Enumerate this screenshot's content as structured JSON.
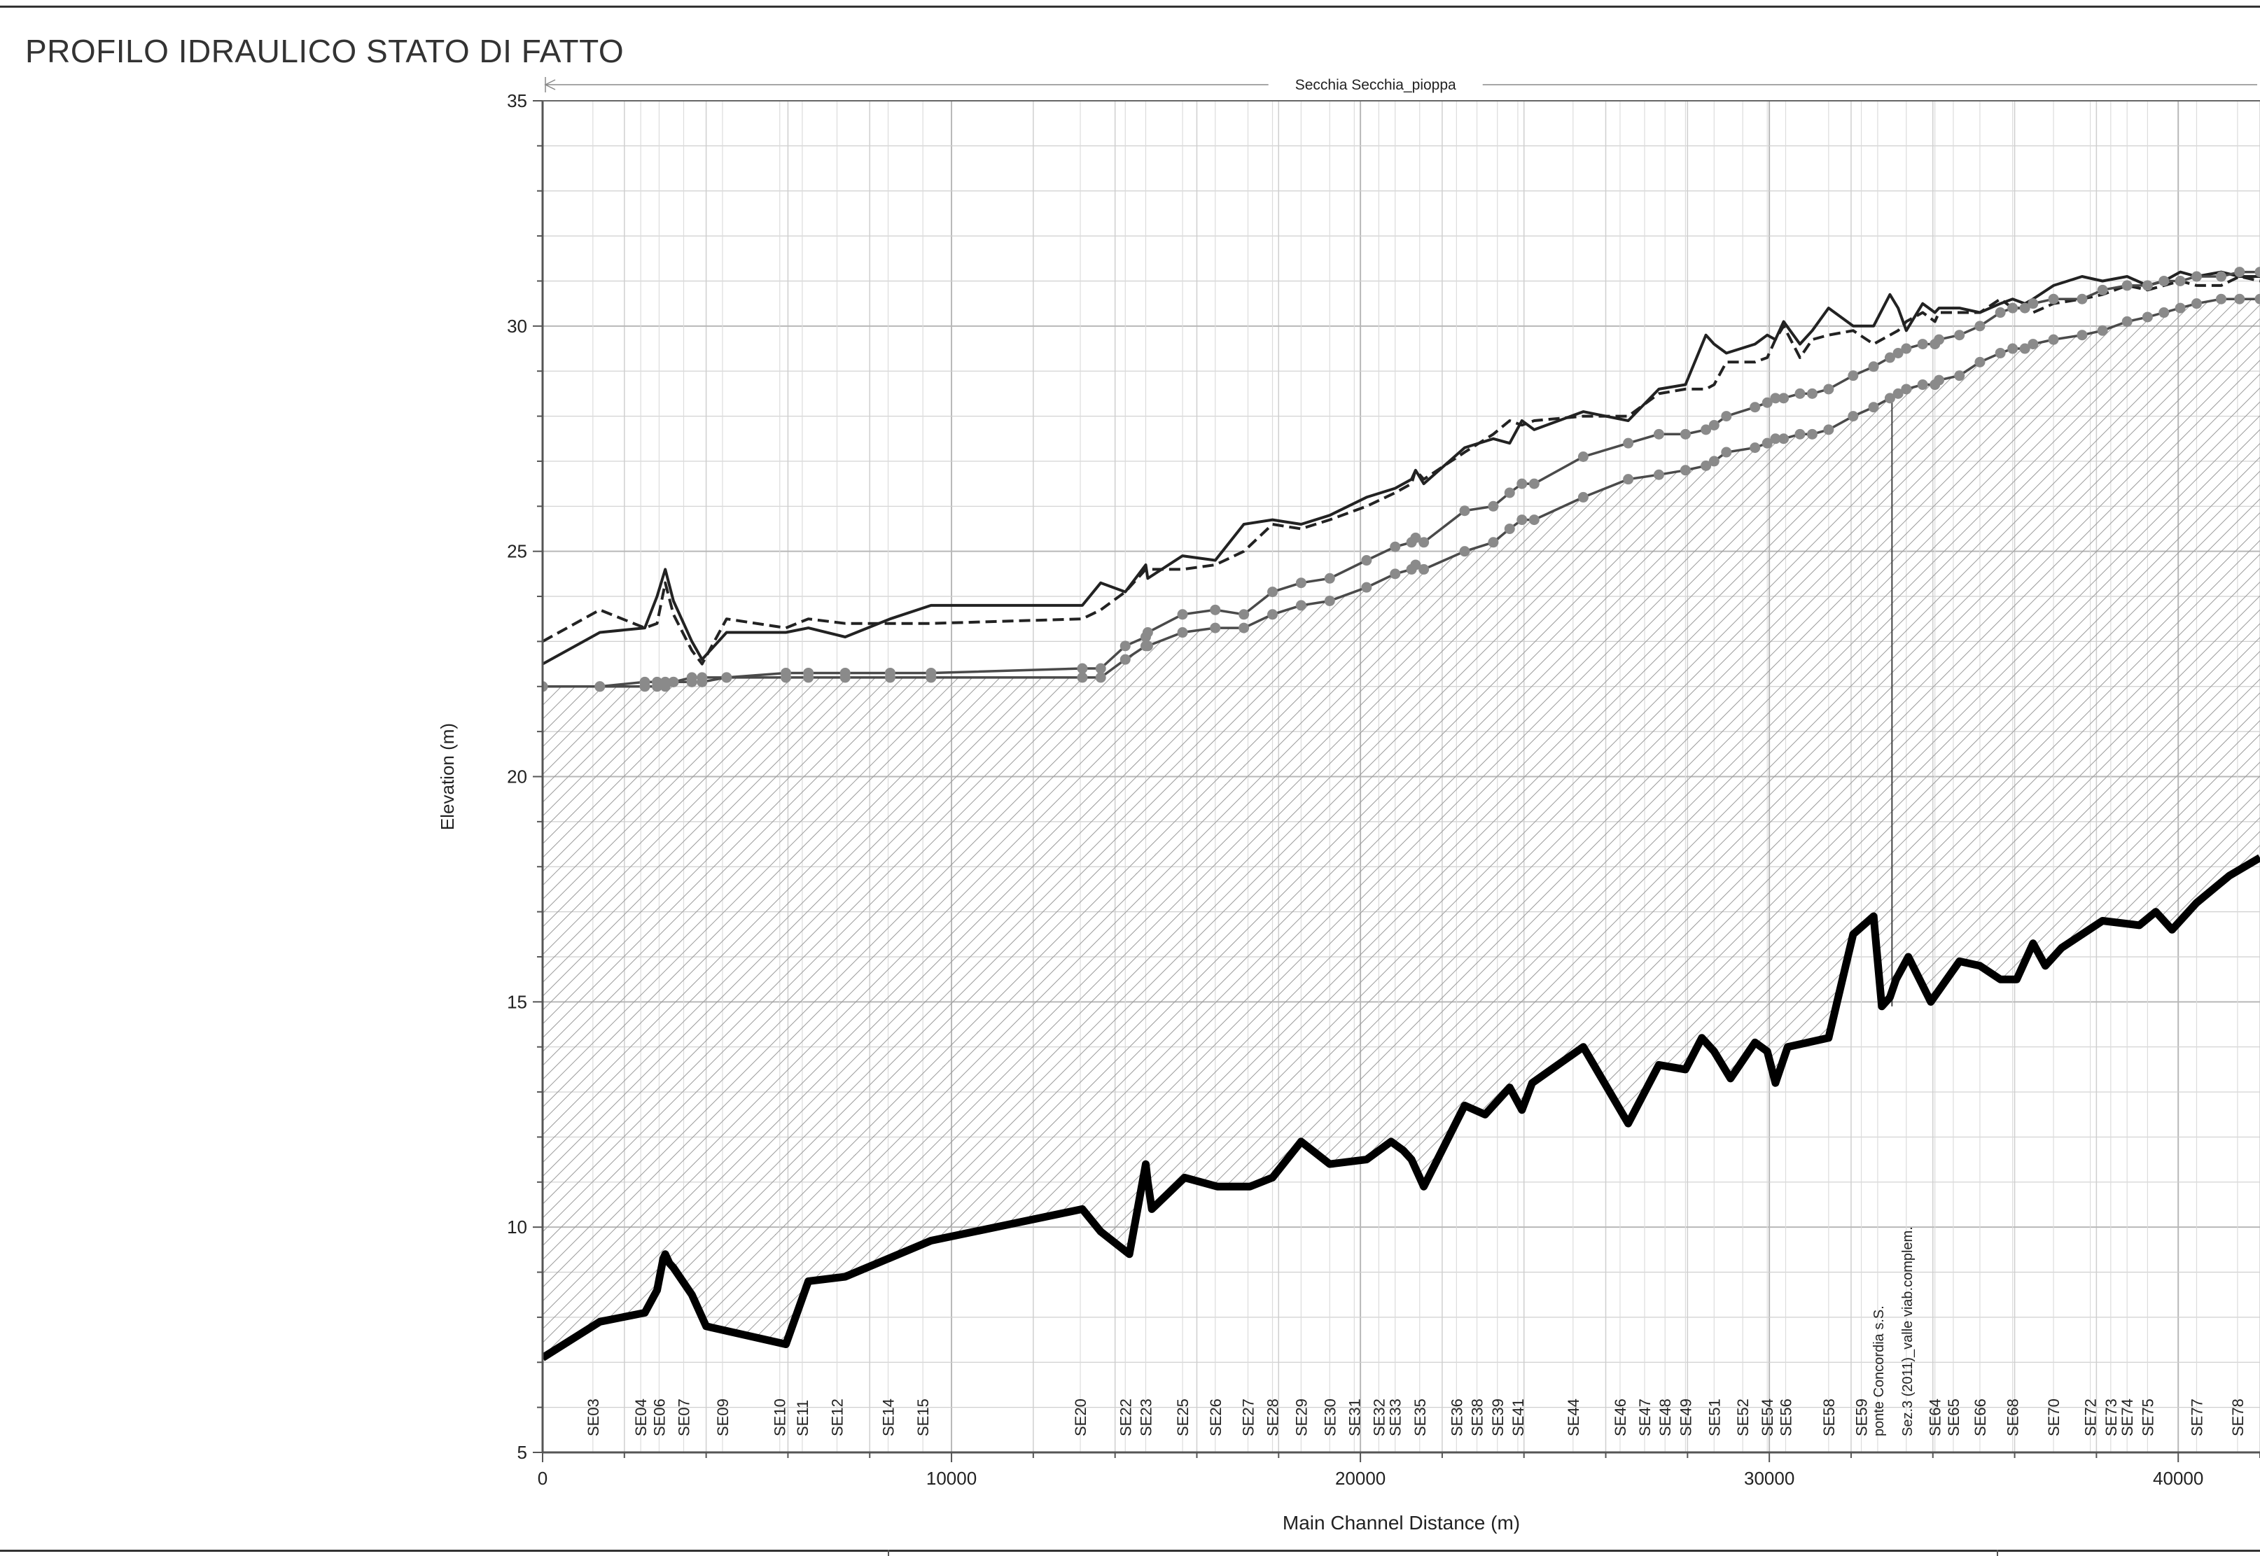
{
  "page": {
    "title": "PROFILO IDRAULICO STATO DI FATTO"
  },
  "colors": {
    "frame": "#333333",
    "grid": "#cfcfcf",
    "hatch": "#9a9a9a",
    "bed": "#000000",
    "ws": "#222222",
    "marker": "#8a8a8a"
  },
  "chart_data": {
    "type": "line",
    "reach_label": "Secchia Secchia_pioppa",
    "xlabel": "Main Channel Distance (m)",
    "ylabel": "Elevation (m)",
    "xlim": [
      0,
      42000
    ],
    "ylim": [
      5,
      35
    ],
    "x_ticks": [
      0,
      10000,
      20000,
      30000,
      40000
    ],
    "x_tick_labels": [
      "0",
      "10000",
      "20000",
      "30000",
      "40000"
    ],
    "y_ticks": [
      5,
      10,
      15,
      20,
      25,
      30,
      35
    ],
    "y_tick_labels": [
      "5",
      "10",
      "15",
      "20",
      "25",
      "30",
      "35"
    ],
    "grid": true,
    "series": [
      {
        "style": "thick-solid",
        "x": [
          0,
          1400,
          2500,
          2800,
          2950,
          3000,
          3100,
          3200,
          3650,
          4000,
          5950,
          6500,
          7400,
          9500,
          13200,
          13650,
          14350,
          14750,
          14800,
          14900,
          15700,
          16500,
          17300,
          17850,
          18550,
          19250,
          20150,
          20750,
          21050,
          21250,
          21550,
          22550,
          23050,
          23650,
          23950,
          24200,
          25450,
          26550,
          27300,
          27950,
          28350,
          28650,
          29050,
          29650,
          29950,
          30150,
          30450,
          31450,
          32050,
          32550,
          32750,
          32950,
          33100,
          33400,
          33950,
          34650,
          35150,
          35650,
          36050,
          36450,
          36750,
          37150,
          38150,
          39050,
          39450,
          39850,
          40450,
          41250,
          42000
        ],
        "y": [
          7.1,
          7.9,
          8.1,
          8.6,
          9.3,
          9.4,
          9.2,
          9.1,
          8.5,
          7.8,
          7.4,
          8.8,
          8.9,
          9.7,
          10.4,
          9.9,
          9.4,
          11.4,
          11.0,
          10.4,
          11.1,
          10.9,
          10.9,
          11.1,
          11.9,
          11.4,
          11.5,
          11.9,
          11.7,
          11.5,
          10.9,
          12.7,
          12.5,
          13.1,
          12.6,
          13.2,
          14.0,
          12.3,
          13.6,
          13.5,
          14.2,
          13.9,
          13.3,
          14.1,
          13.9,
          13.2,
          14.0,
          14.2,
          16.5,
          16.9,
          14.9,
          15.1,
          15.5,
          16.0,
          15.0,
          15.9,
          15.8,
          15.5,
          15.5,
          16.3,
          15.8,
          16.2,
          16.8,
          16.7,
          17.0,
          16.6,
          17.2,
          17.8,
          18.2
        ]
      },
      {
        "style": "solid",
        "x": [
          0,
          1400,
          2500,
          2800,
          3000,
          3200,
          3650,
          3900,
          4500,
          5950,
          6500,
          7400,
          8500,
          9500,
          13200,
          13650,
          14250,
          14750,
          14800,
          15650,
          16450,
          17150,
          17850,
          18550,
          19250,
          20150,
          20850,
          21250,
          21350,
          21550,
          22550,
          23250,
          23650,
          23950,
          24250,
          25450,
          26550,
          27300,
          27950,
          28450,
          28650,
          28950,
          29650,
          29950,
          30150,
          30350,
          30750,
          31050,
          31450,
          32050,
          32550,
          32950,
          33150,
          33350,
          33750,
          34050,
          34150,
          34650,
          35150,
          35650,
          35950,
          36250,
          36450,
          36950,
          37650,
          38150,
          38750,
          39250,
          39650,
          40050,
          40450,
          41050,
          41500,
          42000
        ],
        "y": [
          22.5,
          23.2,
          23.3,
          24.0,
          24.6,
          23.9,
          23.0,
          22.6,
          23.2,
          23.2,
          23.3,
          23.1,
          23.5,
          23.8,
          23.8,
          24.3,
          24.1,
          24.7,
          24.4,
          24.9,
          24.8,
          25.6,
          25.7,
          25.6,
          25.8,
          26.2,
          26.4,
          26.6,
          26.8,
          26.5,
          27.3,
          27.5,
          27.4,
          27.9,
          27.7,
          28.1,
          27.9,
          28.6,
          28.7,
          29.8,
          29.6,
          29.4,
          29.6,
          29.8,
          29.7,
          30.1,
          29.6,
          29.9,
          30.4,
          30.0,
          30.0,
          30.7,
          30.4,
          29.9,
          30.5,
          30.3,
          30.4,
          30.4,
          30.3,
          30.5,
          30.6,
          30.5,
          30.6,
          30.9,
          31.1,
          31.0,
          31.1,
          30.9,
          31.0,
          31.2,
          31.1,
          31.2,
          31.1,
          31.1
        ]
      },
      {
        "style": "dashed",
        "x": [
          0,
          1400,
          2500,
          2800,
          3000,
          3200,
          3650,
          3900,
          4500,
          5950,
          6500,
          7400,
          8500,
          9500,
          13200,
          13650,
          14250,
          14750,
          14800,
          15650,
          16450,
          17150,
          17850,
          18550,
          19250,
          20150,
          20850,
          21250,
          21350,
          21550,
          22550,
          23250,
          23650,
          23950,
          24250,
          25450,
          26550,
          27300,
          27950,
          28450,
          28650,
          28950,
          29650,
          29950,
          30150,
          30350,
          30750,
          31050,
          31450,
          32050,
          32550,
          32950,
          33150,
          33350,
          33750,
          34050,
          34150,
          34650,
          35150,
          35650,
          35950,
          36250,
          36450,
          36950,
          37650,
          38150,
          38750,
          39250,
          39650,
          40050,
          40450,
          41050,
          41500,
          42000
        ],
        "y": [
          23.0,
          23.7,
          23.3,
          23.4,
          24.3,
          23.6,
          22.8,
          22.5,
          23.5,
          23.3,
          23.5,
          23.4,
          23.4,
          23.4,
          23.5,
          23.7,
          24.1,
          24.6,
          24.6,
          24.6,
          24.7,
          25.0,
          25.6,
          25.5,
          25.7,
          26.0,
          26.3,
          26.5,
          26.8,
          26.6,
          27.2,
          27.6,
          27.9,
          27.8,
          27.9,
          28.0,
          28.0,
          28.5,
          28.6,
          28.6,
          28.7,
          29.2,
          29.2,
          29.3,
          29.7,
          30.0,
          29.3,
          29.7,
          29.8,
          29.9,
          29.6,
          29.8,
          29.9,
          30.1,
          30.3,
          30.1,
          30.3,
          30.3,
          30.3,
          30.6,
          30.4,
          30.4,
          30.3,
          30.5,
          30.6,
          30.7,
          30.9,
          30.8,
          30.9,
          31.0,
          30.9,
          30.9,
          31.1,
          31.0
        ]
      },
      {
        "style": "markers",
        "x": [
          0,
          1400,
          2500,
          2800,
          3000,
          3200,
          3650,
          3900,
          4500,
          5950,
          6500,
          7400,
          8500,
          9500,
          13200,
          13650,
          14250,
          14750,
          14800,
          15650,
          16450,
          17150,
          17850,
          18550,
          19250,
          20150,
          20850,
          21250,
          21350,
          21550,
          22550,
          23250,
          23650,
          23950,
          24250,
          25450,
          26550,
          27300,
          27950,
          28450,
          28650,
          28950,
          29650,
          29950,
          30150,
          30350,
          30750,
          31050,
          31450,
          32050,
          32550,
          32950,
          33150,
          33350,
          33750,
          34050,
          34150,
          34650,
          35150,
          35650,
          35950,
          36250,
          36450,
          36950,
          37650,
          38150,
          38750,
          39250,
          39650,
          40050,
          40450,
          41050,
          41500,
          42000
        ],
        "y": [
          22.0,
          22.0,
          22.1,
          22.1,
          22.1,
          22.1,
          22.2,
          22.2,
          22.2,
          22.3,
          22.3,
          22.3,
          22.3,
          22.3,
          22.4,
          22.4,
          22.9,
          23.1,
          23.2,
          23.6,
          23.7,
          23.6,
          24.1,
          24.3,
          24.4,
          24.8,
          25.1,
          25.2,
          25.3,
          25.2,
          25.9,
          26.0,
          26.3,
          26.5,
          26.5,
          27.1,
          27.4,
          27.6,
          27.6,
          27.7,
          27.8,
          28.0,
          28.2,
          28.3,
          28.4,
          28.4,
          28.5,
          28.5,
          28.6,
          28.9,
          29.1,
          29.3,
          29.4,
          29.5,
          29.6,
          29.6,
          29.7,
          29.8,
          30.0,
          30.3,
          30.4,
          30.4,
          30.5,
          30.6,
          30.6,
          30.8,
          30.9,
          30.9,
          31.0,
          31.0,
          31.1,
          31.1,
          31.2,
          31.2
        ]
      },
      {
        "style": "markers",
        "x": [
          0,
          1400,
          2500,
          2800,
          3000,
          3200,
          3650,
          3900,
          4500,
          5950,
          6500,
          7400,
          8500,
          9500,
          13200,
          13650,
          14250,
          14750,
          14800,
          15650,
          16450,
          17150,
          17850,
          18550,
          19250,
          20150,
          20850,
          21250,
          21350,
          21550,
          22550,
          23250,
          23650,
          23950,
          24250,
          25450,
          26550,
          27300,
          27950,
          28450,
          28650,
          28950,
          29650,
          29950,
          30150,
          30350,
          30750,
          31050,
          31450,
          32050,
          32550,
          32950,
          33150,
          33350,
          33750,
          34050,
          34150,
          34650,
          35150,
          35650,
          35950,
          36250,
          36450,
          36950,
          37650,
          38150,
          38750,
          39250,
          39650,
          40050,
          40450,
          41050,
          41500,
          42000
        ],
        "y": [
          22.0,
          22.0,
          22.0,
          22.0,
          22.0,
          22.1,
          22.1,
          22.1,
          22.2,
          22.2,
          22.2,
          22.2,
          22.2,
          22.2,
          22.2,
          22.2,
          22.6,
          22.9,
          22.9,
          23.2,
          23.3,
          23.3,
          23.6,
          23.8,
          23.9,
          24.2,
          24.5,
          24.6,
          24.7,
          24.6,
          25.0,
          25.2,
          25.5,
          25.7,
          25.7,
          26.2,
          26.6,
          26.7,
          26.8,
          26.9,
          27.0,
          27.2,
          27.3,
          27.4,
          27.5,
          27.5,
          27.6,
          27.6,
          27.7,
          28.0,
          28.2,
          28.4,
          28.5,
          28.6,
          28.7,
          28.7,
          28.8,
          28.9,
          29.2,
          29.4,
          29.5,
          29.5,
          29.6,
          29.7,
          29.8,
          29.9,
          30.1,
          30.2,
          30.3,
          30.4,
          30.5,
          30.6,
          30.6,
          30.6
        ]
      }
    ],
    "sections": [
      {
        "label": "SE03",
        "x": 1230
      },
      {
        "label": "SE04",
        "x": 2400
      },
      {
        "label": "SE06",
        "x": 2850
      },
      {
        "label": "SE07",
        "x": 3450
      },
      {
        "label": "SE09",
        "x": 4400
      },
      {
        "label": "SE10",
        "x": 5800
      },
      {
        "label": "SE11",
        "x": 6350
      },
      {
        "label": "SE12",
        "x": 7200
      },
      {
        "label": "SE14",
        "x": 8450
      },
      {
        "label": "SE15",
        "x": 9300
      },
      {
        "label": "SE20",
        "x": 13150
      },
      {
        "label": "SE22",
        "x": 14250
      },
      {
        "label": "SE23",
        "x": 14750
      },
      {
        "label": "SE25",
        "x": 15650
      },
      {
        "label": "SE26",
        "x": 16450
      },
      {
        "label": "SE27",
        "x": 17250
      },
      {
        "label": "SE28",
        "x": 17850
      },
      {
        "label": "SE29",
        "x": 18550
      },
      {
        "label": "SE30",
        "x": 19250
      },
      {
        "label": "SE31",
        "x": 19850
      },
      {
        "label": "SE32",
        "x": 20450
      },
      {
        "label": "SE33",
        "x": 20850
      },
      {
        "label": "SE35",
        "x": 21450
      },
      {
        "label": "SE36",
        "x": 22350
      },
      {
        "label": "SE38",
        "x": 22850
      },
      {
        "label": "SE39",
        "x": 23350
      },
      {
        "label": "SE41",
        "x": 23850
      },
      {
        "label": "SE44",
        "x": 25200
      },
      {
        "label": "SE46",
        "x": 26350
      },
      {
        "label": "SE47",
        "x": 26950
      },
      {
        "label": "SE48",
        "x": 27450
      },
      {
        "label": "SE49",
        "x": 27950
      },
      {
        "label": "SE51",
        "x": 28650
      },
      {
        "label": "SE52",
        "x": 29350
      },
      {
        "label": "SE54",
        "x": 29950
      },
      {
        "label": "SE56",
        "x": 30400
      },
      {
        "label": "SE58",
        "x": 31450
      },
      {
        "label": "SE59",
        "x": 32250
      },
      {
        "label": "ponte Concordia s.S.",
        "x": 32650
      },
      {
        "label": "Sez.3 (2011)_valle viab.complem.",
        "x": 33350
      },
      {
        "label": "SE64",
        "x": 34050
      },
      {
        "label": "SE65",
        "x": 34500
      },
      {
        "label": "SE66",
        "x": 35150
      },
      {
        "label": "SE68",
        "x": 35950
      },
      {
        "label": "SE70",
        "x": 36950
      },
      {
        "label": "SE72",
        "x": 37850
      },
      {
        "label": "SE73",
        "x": 38350
      },
      {
        "label": "SE74",
        "x": 38750
      },
      {
        "label": "SE75",
        "x": 39250
      },
      {
        "label": "SE77",
        "x": 40450
      },
      {
        "label": "SE78",
        "x": 41450
      }
    ],
    "bridge_line_x": 33000
  }
}
